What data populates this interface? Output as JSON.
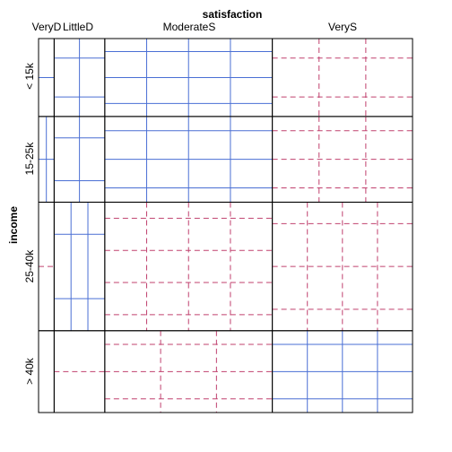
{
  "chart_data": {
    "type": "mosaic",
    "x_variable": "satisfaction",
    "y_variable": "income",
    "x_levels": [
      "VeryD",
      "LittleD",
      "ModerateS",
      "VeryS"
    ],
    "y_levels": [
      "< 15k",
      "15-25k",
      "25-40k",
      "> 40k"
    ],
    "counts": [
      [
        1,
        3,
        10,
        6
      ],
      [
        2,
        3,
        10,
        7
      ],
      [
        1,
        6,
        14,
        12
      ],
      [
        0,
        1,
        9,
        11
      ]
    ],
    "colors": {
      "positive_residual": "#4a6fd4",
      "negative_residual": "#c0406e",
      "frame": "#000000"
    }
  }
}
